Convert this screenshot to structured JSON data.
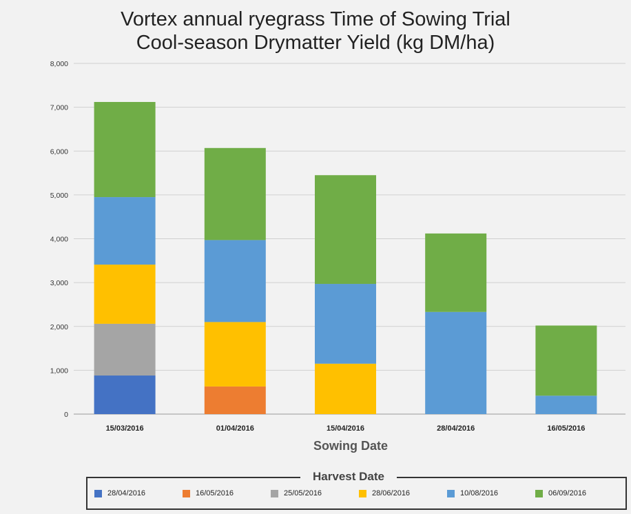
{
  "title": {
    "line1": "Vortex annual ryegrass Time of Sowing Trial",
    "line2": "Cool-season Drymatter Yield (kg DM/ha)"
  },
  "chart_data": {
    "type": "bar",
    "stacked": true,
    "title": "Vortex annual ryegrass Time of Sowing Trial Cool-season Drymatter Yield (kg DM/ha)",
    "xlabel": "Sowing Date",
    "ylabel": "",
    "legend_title": "Harvest Date",
    "categories": [
      "15/03/2016",
      "01/04/2016",
      "15/04/2016",
      "28/04/2016",
      "16/05/2016"
    ],
    "ylim": [
      0,
      8000
    ],
    "yticks": [
      0,
      1000,
      2000,
      3000,
      4000,
      5000,
      6000,
      7000,
      8000
    ],
    "ytick_labels": [
      "0",
      "1,000",
      "2,000",
      "3,000",
      "4,000",
      "5,000",
      "6,000",
      "7,000",
      "8,000"
    ],
    "series": [
      {
        "name": "28/04/2016",
        "color": "#4472c4",
        "values": [
          880,
          0,
          0,
          0,
          0
        ]
      },
      {
        "name": "16/05/2016",
        "color": "#ed7d31",
        "values": [
          0,
          630,
          0,
          0,
          0
        ]
      },
      {
        "name": "25/05/2016",
        "color": "#a5a5a5",
        "values": [
          1180,
          0,
          0,
          0,
          0
        ]
      },
      {
        "name": "28/06/2016",
        "color": "#ffc000",
        "values": [
          1350,
          1470,
          1150,
          0,
          0
        ]
      },
      {
        "name": "10/08/2016",
        "color": "#5b9bd5",
        "values": [
          1540,
          1870,
          1820,
          2330,
          420
        ]
      },
      {
        "name": "06/09/2016",
        "color": "#70ad47",
        "values": [
          2170,
          2100,
          2480,
          1790,
          1600
        ]
      }
    ]
  }
}
